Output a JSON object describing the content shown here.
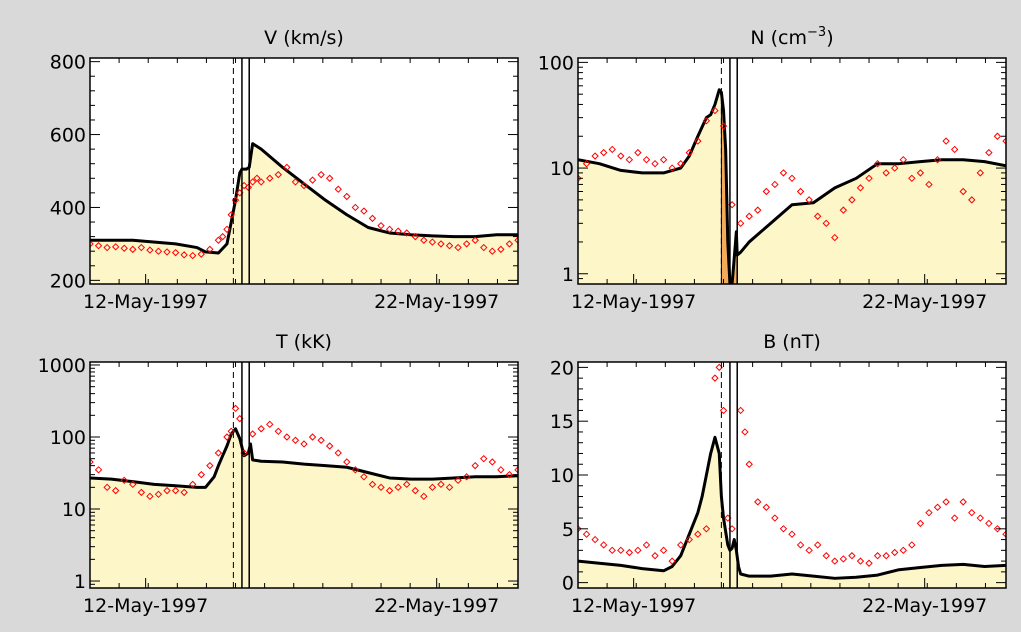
{
  "figure": {
    "background": "#d9d9d9",
    "plot_background": "#ffffff",
    "fill_color": "#fdf6c9",
    "highlight_fill_color": "#f5aa5a",
    "model_line_color": "#000000",
    "observation_color": "#ff0000"
  },
  "chart_data": [
    {
      "type": "line",
      "title": "V (km/s)",
      "y_scale": "linear",
      "ylim": [
        190,
        810
      ],
      "y_ticks": [
        200,
        400,
        600,
        800
      ],
      "y_tick_labels": [
        "200",
        "400",
        "600",
        "800"
      ],
      "x_tick_labels": [
        "12-May-1997",
        "22-May-1997"
      ],
      "xlim": [
        0,
        100
      ],
      "x_tick_positions": [
        13,
        81
      ],
      "markers": {
        "dashed": 33.5,
        "solid": [
          35.5,
          37.2
        ]
      },
      "model": {
        "x": [
          0,
          10,
          20,
          25,
          27,
          30,
          32,
          33,
          34,
          35,
          35.5,
          36.5,
          37.2,
          38,
          40,
          45,
          50,
          55,
          60,
          65,
          70,
          75,
          80,
          85,
          90,
          95,
          100
        ],
        "y": [
          310,
          310,
          300,
          290,
          278,
          275,
          300,
          360,
          420,
          495,
          505,
          505,
          510,
          575,
          560,
          510,
          465,
          420,
          380,
          345,
          330,
          325,
          322,
          320,
          320,
          325,
          325
        ]
      },
      "observed": {
        "x": [
          0,
          2,
          4,
          6,
          8,
          10,
          12,
          14,
          16,
          18,
          20,
          22,
          24,
          26,
          28,
          30,
          31,
          32,
          33,
          34,
          35,
          36,
          37,
          38,
          39,
          40,
          42,
          44,
          46,
          48,
          50,
          52,
          54,
          56,
          58,
          60,
          62,
          64,
          66,
          68,
          70,
          72,
          74,
          76,
          78,
          80,
          82,
          84,
          86,
          88,
          90,
          92,
          94,
          96,
          98,
          100
        ],
        "y": [
          300,
          295,
          290,
          292,
          288,
          285,
          290,
          283,
          280,
          278,
          276,
          270,
          268,
          272,
          285,
          310,
          320,
          340,
          380,
          420,
          440,
          460,
          455,
          470,
          480,
          470,
          480,
          490,
          510,
          470,
          460,
          475,
          490,
          480,
          450,
          430,
          400,
          390,
          370,
          350,
          340,
          335,
          330,
          320,
          310,
          305,
          300,
          295,
          290,
          300,
          310,
          290,
          280,
          285,
          300,
          310
        ]
      }
    },
    {
      "type": "line",
      "title": "N (cm",
      "title_superscript": "−3",
      "title_suffix": ")",
      "y_scale": "log",
      "ylim": [
        0.8,
        110
      ],
      "y_ticks": [
        1,
        10,
        100
      ],
      "y_tick_labels": [
        "1",
        "10",
        "100"
      ],
      "x_tick_labels": [
        "12-May-1997",
        "22-May-1997"
      ],
      "xlim": [
        0,
        100
      ],
      "x_tick_positions": [
        13,
        81
      ],
      "markers": {
        "dashed": 33.5,
        "solid": [
          35.5,
          37.2
        ]
      },
      "model": {
        "x": [
          0,
          5,
          10,
          15,
          20,
          24,
          26,
          28,
          30,
          31,
          32,
          33,
          33.5,
          34,
          34.5,
          35,
          35.5,
          36,
          36.5,
          37,
          37.2,
          38,
          40,
          45,
          50,
          55,
          60,
          65,
          70,
          75,
          80,
          85,
          90,
          95,
          100
        ],
        "y": [
          12,
          11,
          9.5,
          9,
          9,
          10,
          13,
          20,
          30,
          32,
          40,
          55,
          52,
          35,
          15,
          2,
          0.8,
          0.8,
          1.4,
          2.5,
          1.5,
          1.6,
          2,
          3,
          4.5,
          4.7,
          6.5,
          8,
          11,
          11,
          11.5,
          12,
          12,
          11.5,
          10.5
        ]
      },
      "highlight_region": [
        33.5,
        37.2
      ],
      "observed": {
        "x": [
          0,
          2,
          4,
          6,
          8,
          10,
          12,
          14,
          16,
          18,
          20,
          22,
          24,
          26,
          28,
          30,
          32,
          34,
          36,
          38,
          40,
          42,
          44,
          46,
          48,
          50,
          52,
          54,
          56,
          58,
          60,
          62,
          64,
          66,
          68,
          70,
          72,
          74,
          76,
          78,
          80,
          82,
          84,
          86,
          88,
          90,
          92,
          94,
          96,
          98,
          100
        ],
        "y": [
          8,
          11,
          13,
          14,
          15,
          13,
          12,
          14,
          12,
          11,
          12,
          10,
          11,
          14,
          18,
          28,
          35,
          25,
          4.5,
          3,
          3.5,
          4,
          6,
          7,
          9,
          8,
          6,
          5,
          3.5,
          3,
          2.2,
          4,
          5,
          6.5,
          8,
          11,
          9,
          10,
          12,
          8,
          9,
          7,
          12,
          18,
          15,
          6,
          5,
          9,
          14,
          20,
          18
        ]
      }
    },
    {
      "type": "line",
      "title": "T (kK)",
      "y_scale": "log",
      "ylim": [
        0.8,
        1100
      ],
      "y_ticks": [
        1,
        10,
        100,
        1000
      ],
      "y_tick_labels": [
        "1",
        "10",
        "100",
        "1000"
      ],
      "x_tick_labels": [
        "12-May-1997",
        "22-May-1997"
      ],
      "xlim": [
        0,
        100
      ],
      "x_tick_positions": [
        13,
        81
      ],
      "markers": {
        "dashed": 33.5,
        "solid": [
          35.5,
          37.2
        ]
      },
      "model": {
        "x": [
          0,
          5,
          10,
          15,
          20,
          25,
          27,
          29,
          30,
          31,
          32,
          33,
          34,
          35,
          36,
          37,
          37.5,
          38,
          40,
          45,
          50,
          55,
          60,
          65,
          70,
          75,
          80,
          85,
          90,
          95,
          100
        ],
        "y": [
          27,
          26,
          24,
          22,
          21,
          20,
          20,
          28,
          40,
          55,
          75,
          110,
          130,
          95,
          55,
          60,
          80,
          48,
          46,
          45,
          42,
          40,
          38,
          32,
          27,
          26,
          26,
          27,
          28,
          28,
          29
        ]
      },
      "observed": {
        "x": [
          0,
          2,
          4,
          6,
          8,
          10,
          12,
          14,
          16,
          18,
          20,
          22,
          24,
          26,
          28,
          30,
          32,
          33,
          34,
          35,
          36,
          38,
          40,
          42,
          44,
          46,
          48,
          50,
          52,
          54,
          56,
          58,
          60,
          62,
          64,
          66,
          68,
          70,
          72,
          74,
          76,
          78,
          80,
          82,
          84,
          86,
          88,
          90,
          92,
          94,
          96,
          98,
          100
        ],
        "y": [
          45,
          35,
          20,
          18,
          25,
          22,
          17,
          15,
          16,
          18,
          18,
          17,
          22,
          30,
          40,
          60,
          100,
          120,
          250,
          180,
          60,
          110,
          130,
          150,
          120,
          100,
          90,
          80,
          100,
          90,
          75,
          60,
          45,
          35,
          28,
          22,
          20,
          18,
          20,
          22,
          18,
          15,
          20,
          22,
          20,
          25,
          28,
          40,
          50,
          45,
          35,
          30,
          35
        ]
      }
    },
    {
      "type": "line",
      "title": "B (nT)",
      "y_scale": "linear",
      "ylim": [
        -0.5,
        20.5
      ],
      "y_ticks": [
        0,
        5,
        10,
        15,
        20
      ],
      "y_tick_labels": [
        "0",
        "5",
        "10",
        "15",
        "20"
      ],
      "x_tick_labels": [
        "12-May-1997",
        "22-May-1997"
      ],
      "xlim": [
        0,
        100
      ],
      "x_tick_positions": [
        13,
        81
      ],
      "markers": {
        "dashed": 33.5,
        "solid": [
          35.5,
          37.2
        ]
      },
      "model": {
        "x": [
          0,
          5,
          10,
          15,
          20,
          22,
          24,
          26,
          28,
          29,
          30,
          31,
          32,
          33,
          33.5,
          34,
          35,
          35.5,
          36,
          36.5,
          37,
          37.5,
          38,
          40,
          45,
          50,
          55,
          60,
          65,
          70,
          75,
          80,
          85,
          90,
          95,
          100
        ],
        "y": [
          2,
          1.8,
          1.6,
          1.3,
          1.1,
          1.5,
          2.5,
          4.5,
          6.5,
          8,
          10,
          12,
          13.5,
          12,
          8,
          6,
          3.5,
          3,
          3.2,
          4,
          3,
          1.5,
          0.8,
          0.6,
          0.6,
          0.8,
          0.6,
          0.4,
          0.5,
          0.7,
          1.2,
          1.4,
          1.6,
          1.7,
          1.5,
          1.6
        ]
      },
      "observed": {
        "x": [
          0,
          2,
          4,
          6,
          8,
          10,
          12,
          14,
          16,
          18,
          20,
          22,
          24,
          26,
          28,
          30,
          32,
          33,
          34,
          35,
          36,
          37,
          38,
          39,
          40,
          42,
          44,
          46,
          48,
          50,
          52,
          54,
          56,
          58,
          60,
          62,
          64,
          66,
          68,
          70,
          72,
          74,
          76,
          78,
          80,
          82,
          84,
          86,
          88,
          90,
          92,
          94,
          96,
          98,
          100
        ],
        "y": [
          5,
          4.5,
          4,
          3.5,
          3,
          3,
          2.8,
          3,
          3.5,
          2.5,
          3,
          2,
          3.5,
          4,
          4.5,
          5,
          19,
          20,
          16,
          6,
          5,
          21,
          16,
          14,
          11,
          7.5,
          7,
          6,
          5,
          4.5,
          3.5,
          3,
          3.5,
          2.5,
          2,
          2.2,
          2.5,
          2,
          1.8,
          2.5,
          2.5,
          2.8,
          3,
          3.5,
          5.5,
          6.5,
          7,
          7.5,
          6,
          7.5,
          6.5,
          6,
          5.5,
          5,
          4.5
        ]
      }
    }
  ]
}
